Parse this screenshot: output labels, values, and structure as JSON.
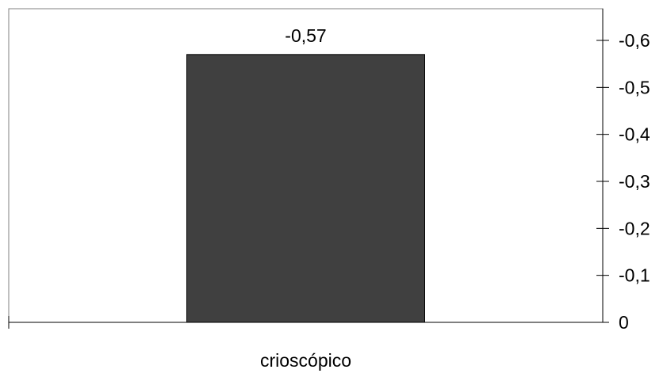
{
  "chart_data": {
    "type": "bar",
    "categories": [
      "crioscópico"
    ],
    "values": [
      -0.57
    ],
    "data_labels": [
      "-0,57"
    ],
    "y_axis": {
      "position": "right",
      "reversed": true,
      "range": [
        0,
        -0.6
      ],
      "ticks": [
        0,
        -0.1,
        -0.2,
        -0.3,
        -0.4,
        -0.5,
        -0.6
      ],
      "tick_labels": [
        "0",
        "-0,1",
        "-0,2",
        "-0,3",
        "-0,4",
        "-0,5",
        "-0,6"
      ]
    },
    "grid": false,
    "legend": "none",
    "colors": {
      "bar_fill": "#404040",
      "bar_stroke": "#000000",
      "axis": "#000000",
      "frame": "#808080",
      "text": "#000000",
      "background": "#ffffff"
    }
  }
}
